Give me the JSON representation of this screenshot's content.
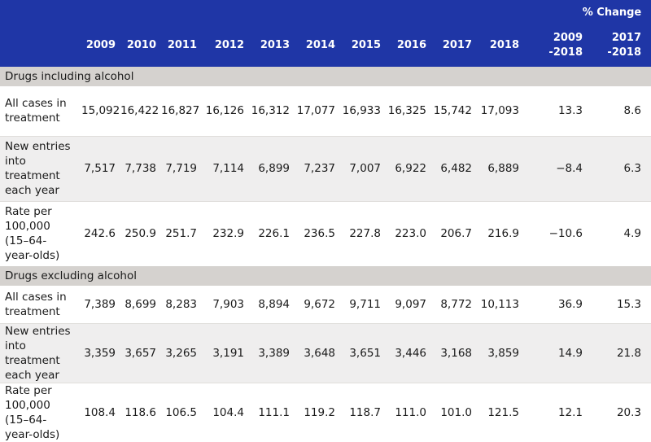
{
  "header": {
    "pct_change_title": "% Change",
    "years": [
      "2009",
      "2010",
      "2011",
      "2012",
      "2013",
      "2014",
      "2015",
      "2016",
      "2017",
      "2018"
    ],
    "change_cols": [
      [
        "2009",
        "-2018"
      ],
      [
        "2017",
        "-2018"
      ]
    ]
  },
  "sections": [
    {
      "title": "Drugs including alcohol",
      "rows": [
        {
          "label": [
            "All cases in",
            "treatment"
          ],
          "values": [
            "15,092",
            "16,422",
            "16,827",
            "16,126",
            "16,312",
            "17,077",
            "16,933",
            "16,325",
            "15,742",
            "17,093",
            "13.3",
            "8.6"
          ]
        },
        {
          "label": [
            "New entries",
            "into treatment",
            "each year"
          ],
          "values": [
            "7,517",
            "7,738",
            "7,719",
            "7,114",
            "6,899",
            "7,237",
            "7,007",
            "6,922",
            "6,482",
            "6,889",
            "−8.4",
            "6.3"
          ]
        },
        {
          "label": [
            "Rate per",
            "100,000",
            "(15–64-",
            "year-olds)"
          ],
          "values": [
            "242.6",
            "250.9",
            "251.7",
            "232.9",
            "226.1",
            "236.5",
            "227.8",
            "223.0",
            "206.7",
            "216.9",
            "−10.6",
            "4.9"
          ]
        }
      ]
    },
    {
      "title": "Drugs excluding alcohol",
      "rows": [
        {
          "label": [
            "All cases in",
            "treatment"
          ],
          "values": [
            "7,389",
            "8,699",
            "8,283",
            "7,903",
            "8,894",
            "9,672",
            "9,711",
            "9,097",
            "8,772",
            "10,113",
            "36.9",
            "15.3"
          ]
        },
        {
          "label": [
            "New entries",
            "into treatment",
            "each year"
          ],
          "values": [
            "3,359",
            "3,657",
            "3,265",
            "3,191",
            "3,389",
            "3,648",
            "3,651",
            "3,446",
            "3,168",
            "3,859",
            "14.9",
            "21.8"
          ]
        },
        {
          "label": [
            "Rate per",
            "100,000",
            "(15–64-",
            "year-olds)"
          ],
          "values": [
            "108.4",
            "118.6",
            "106.5",
            "104.4",
            "111.1",
            "119.2",
            "118.7",
            "111.0",
            "101.0",
            "121.5",
            "12.1",
            "20.3"
          ]
        }
      ]
    }
  ],
  "colors": {
    "header_bg": "#1f36a6",
    "section_bg": "#d5d2cf",
    "alt_row_bg": "#efeeee"
  }
}
